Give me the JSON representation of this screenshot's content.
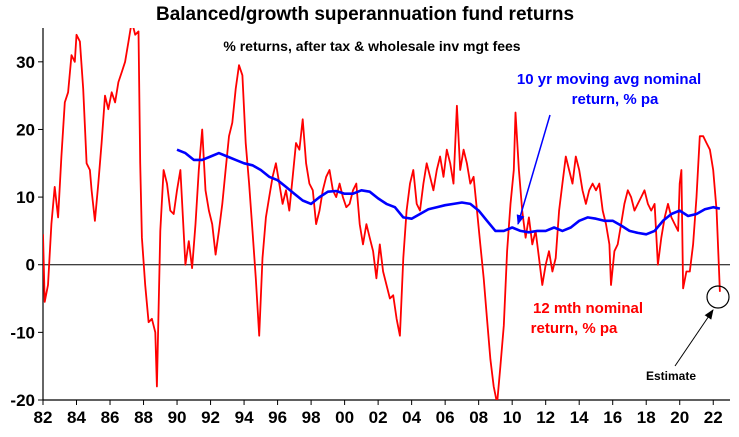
{
  "chart_data": {
    "type": "line",
    "title": "Balanced/growth superannuation fund returns",
    "subtitle": "% returns, after tax & wholesale inv mgt fees",
    "xlabel": "",
    "ylabel": "",
    "xlim": [
      1982,
      2023
    ],
    "ylim": [
      -20,
      35
    ],
    "y_ticks": [
      -20,
      -10,
      0,
      10,
      20,
      30
    ],
    "x_tick_labels": [
      "82",
      "84",
      "86",
      "88",
      "90",
      "92",
      "94",
      "96",
      "98",
      "00",
      "02",
      "04",
      "06",
      "08",
      "10",
      "12",
      "14",
      "16",
      "18",
      "20",
      "22"
    ],
    "grid": false,
    "colors": {
      "moving_avg": "#0000ff",
      "nominal": "#ff0000",
      "axis": "#000000"
    },
    "series": [
      {
        "name": "12 mth nominal return, % pa",
        "color": "#ff0000",
        "points": [
          [
            1982.0,
            4.5
          ],
          [
            1982.1,
            -5.5
          ],
          [
            1982.3,
            -3.0
          ],
          [
            1982.5,
            6.0
          ],
          [
            1982.7,
            11.5
          ],
          [
            1982.9,
            7.0
          ],
          [
            1983.1,
            16.0
          ],
          [
            1983.3,
            24.0
          ],
          [
            1983.5,
            25.5
          ],
          [
            1983.7,
            31.0
          ],
          [
            1983.9,
            30.0
          ],
          [
            1984.0,
            34.0
          ],
          [
            1984.2,
            33.0
          ],
          [
            1984.4,
            26.0
          ],
          [
            1984.6,
            15.0
          ],
          [
            1984.8,
            14.0
          ],
          [
            1984.9,
            11.0
          ],
          [
            1985.1,
            6.5
          ],
          [
            1985.3,
            12.0
          ],
          [
            1985.5,
            18.0
          ],
          [
            1985.7,
            25.0
          ],
          [
            1985.9,
            23.0
          ],
          [
            1986.1,
            25.5
          ],
          [
            1986.3,
            24.0
          ],
          [
            1986.5,
            27.0
          ],
          [
            1986.7,
            28.5
          ],
          [
            1986.9,
            30.0
          ],
          [
            1987.1,
            33.0
          ],
          [
            1987.3,
            36.0
          ],
          [
            1987.5,
            34.0
          ],
          [
            1987.7,
            34.5
          ],
          [
            1987.8,
            15.0
          ],
          [
            1987.9,
            4.0
          ],
          [
            1988.1,
            -3.0
          ],
          [
            1988.3,
            -8.5
          ],
          [
            1988.5,
            -8.0
          ],
          [
            1988.7,
            -10.0
          ],
          [
            1988.8,
            -18.0
          ],
          [
            1989.0,
            5.0
          ],
          [
            1989.2,
            14.0
          ],
          [
            1989.4,
            12.0
          ],
          [
            1989.6,
            8.0
          ],
          [
            1989.8,
            7.5
          ],
          [
            1990.0,
            11.0
          ],
          [
            1990.2,
            14.0
          ],
          [
            1990.4,
            4.5
          ],
          [
            1990.5,
            0.0
          ],
          [
            1990.7,
            3.5
          ],
          [
            1990.9,
            -0.5
          ],
          [
            1991.1,
            6.0
          ],
          [
            1991.3,
            14.0
          ],
          [
            1991.5,
            20.0
          ],
          [
            1991.7,
            11.0
          ],
          [
            1991.9,
            8.0
          ],
          [
            1992.1,
            6.0
          ],
          [
            1992.3,
            1.5
          ],
          [
            1992.5,
            5.0
          ],
          [
            1992.7,
            9.0
          ],
          [
            1992.9,
            14.0
          ],
          [
            1993.1,
            19.0
          ],
          [
            1993.3,
            21.0
          ],
          [
            1993.5,
            26.0
          ],
          [
            1993.7,
            29.5
          ],
          [
            1993.9,
            28.0
          ],
          [
            1994.1,
            18.0
          ],
          [
            1994.3,
            12.0
          ],
          [
            1994.5,
            5.0
          ],
          [
            1994.7,
            -2.0
          ],
          [
            1994.9,
            -10.5
          ],
          [
            1995.1,
            1.0
          ],
          [
            1995.3,
            7.0
          ],
          [
            1995.5,
            10.0
          ],
          [
            1995.7,
            13.0
          ],
          [
            1995.9,
            15.0
          ],
          [
            1996.1,
            12.0
          ],
          [
            1996.3,
            9.0
          ],
          [
            1996.5,
            11.0
          ],
          [
            1996.7,
            8.0
          ],
          [
            1996.9,
            13.0
          ],
          [
            1997.1,
            18.0
          ],
          [
            1997.3,
            17.0
          ],
          [
            1997.5,
            21.5
          ],
          [
            1997.7,
            15.0
          ],
          [
            1997.9,
            12.0
          ],
          [
            1998.1,
            11.0
          ],
          [
            1998.3,
            6.0
          ],
          [
            1998.5,
            8.0
          ],
          [
            1998.7,
            11.0
          ],
          [
            1998.9,
            13.0
          ],
          [
            1999.1,
            14.0
          ],
          [
            1999.3,
            11.0
          ],
          [
            1999.5,
            10.0
          ],
          [
            1999.7,
            12.0
          ],
          [
            1999.9,
            10.0
          ],
          [
            2000.1,
            8.5
          ],
          [
            2000.3,
            9.0
          ],
          [
            2000.5,
            11.0
          ],
          [
            2000.7,
            12.0
          ],
          [
            2000.9,
            6.0
          ],
          [
            2001.1,
            3.0
          ],
          [
            2001.3,
            6.0
          ],
          [
            2001.5,
            4.0
          ],
          [
            2001.7,
            2.0
          ],
          [
            2001.9,
            -2.0
          ],
          [
            2002.1,
            3.0
          ],
          [
            2002.3,
            -1.0
          ],
          [
            2002.5,
            -3.0
          ],
          [
            2002.7,
            -5.0
          ],
          [
            2002.9,
            -4.5
          ],
          [
            2003.1,
            -8.0
          ],
          [
            2003.3,
            -10.5
          ],
          [
            2003.5,
            1.0
          ],
          [
            2003.7,
            8.0
          ],
          [
            2003.9,
            12.0
          ],
          [
            2004.1,
            14.0
          ],
          [
            2004.3,
            9.0
          ],
          [
            2004.5,
            8.0
          ],
          [
            2004.7,
            12.0
          ],
          [
            2004.9,
            15.0
          ],
          [
            2005.1,
            13.0
          ],
          [
            2005.3,
            11.0
          ],
          [
            2005.5,
            14.0
          ],
          [
            2005.7,
            16.0
          ],
          [
            2005.9,
            13.0
          ],
          [
            2006.1,
            17.0
          ],
          [
            2006.3,
            15.0
          ],
          [
            2006.5,
            12.0
          ],
          [
            2006.7,
            23.5
          ],
          [
            2006.9,
            14.0
          ],
          [
            2007.1,
            17.0
          ],
          [
            2007.3,
            15.0
          ],
          [
            2007.5,
            12.0
          ],
          [
            2007.7,
            13.0
          ],
          [
            2007.9,
            8.0
          ],
          [
            2008.1,
            3.0
          ],
          [
            2008.3,
            -2.0
          ],
          [
            2008.5,
            -8.0
          ],
          [
            2008.7,
            -14.0
          ],
          [
            2008.9,
            -18.0
          ],
          [
            2009.1,
            -20.5
          ],
          [
            2009.3,
            -15.0
          ],
          [
            2009.5,
            -9.0
          ],
          [
            2009.7,
            2.0
          ],
          [
            2009.9,
            9.0
          ],
          [
            2010.1,
            14.0
          ],
          [
            2010.2,
            22.5
          ],
          [
            2010.4,
            14.0
          ],
          [
            2010.6,
            8.0
          ],
          [
            2010.8,
            4.0
          ],
          [
            2011.0,
            7.0
          ],
          [
            2011.2,
            3.0
          ],
          [
            2011.4,
            5.0
          ],
          [
            2011.6,
            1.0
          ],
          [
            2011.8,
            -3.0
          ],
          [
            2012.0,
            0.0
          ],
          [
            2012.2,
            2.0
          ],
          [
            2012.4,
            -1.0
          ],
          [
            2012.6,
            1.0
          ],
          [
            2012.8,
            8.0
          ],
          [
            2013.0,
            12.0
          ],
          [
            2013.2,
            16.0
          ],
          [
            2013.4,
            14.0
          ],
          [
            2013.6,
            12.0
          ],
          [
            2013.8,
            16.0
          ],
          [
            2014.0,
            14.0
          ],
          [
            2014.2,
            11.0
          ],
          [
            2014.4,
            9.0
          ],
          [
            2014.6,
            11.0
          ],
          [
            2014.8,
            12.0
          ],
          [
            2015.0,
            11.0
          ],
          [
            2015.2,
            12.0
          ],
          [
            2015.4,
            8.0
          ],
          [
            2015.6,
            6.0
          ],
          [
            2015.8,
            3.0
          ],
          [
            2015.9,
            -3.0
          ],
          [
            2016.1,
            2.0
          ],
          [
            2016.3,
            3.0
          ],
          [
            2016.5,
            6.0
          ],
          [
            2016.7,
            9.0
          ],
          [
            2016.9,
            11.0
          ],
          [
            2017.1,
            10.0
          ],
          [
            2017.3,
            8.0
          ],
          [
            2017.5,
            9.0
          ],
          [
            2017.7,
            10.0
          ],
          [
            2017.9,
            11.0
          ],
          [
            2018.1,
            9.0
          ],
          [
            2018.3,
            8.0
          ],
          [
            2018.5,
            9.0
          ],
          [
            2018.7,
            0.0
          ],
          [
            2018.9,
            4.0
          ],
          [
            2019.1,
            7.0
          ],
          [
            2019.3,
            9.0
          ],
          [
            2019.5,
            7.0
          ],
          [
            2019.7,
            6.0
          ],
          [
            2019.9,
            5.0
          ],
          [
            2020.0,
            12.0
          ],
          [
            2020.1,
            14.0
          ],
          [
            2020.2,
            -3.5
          ],
          [
            2020.4,
            -1.0
          ],
          [
            2020.6,
            -1.0
          ],
          [
            2020.8,
            3.0
          ],
          [
            2021.0,
            10.0
          ],
          [
            2021.2,
            19.0
          ],
          [
            2021.4,
            19.0
          ],
          [
            2021.6,
            18.0
          ],
          [
            2021.8,
            17.0
          ],
          [
            2022.0,
            14.0
          ],
          [
            2022.2,
            8.0
          ],
          [
            2022.4,
            -4.0
          ]
        ]
      },
      {
        "name": "10 yr moving avg nominal return, % pa",
        "color": "#0000ff",
        "points": [
          [
            1990.0,
            17.0
          ],
          [
            1990.5,
            16.5
          ],
          [
            1991.0,
            15.5
          ],
          [
            1991.5,
            15.5
          ],
          [
            1992.0,
            16.0
          ],
          [
            1992.5,
            16.5
          ],
          [
            1993.0,
            16.0
          ],
          [
            1993.5,
            15.5
          ],
          [
            1994.0,
            15.0
          ],
          [
            1994.5,
            14.7
          ],
          [
            1995.0,
            14.0
          ],
          [
            1995.5,
            13.0
          ],
          [
            1996.0,
            12.5
          ],
          [
            1996.5,
            11.5
          ],
          [
            1997.0,
            10.5
          ],
          [
            1997.5,
            9.5
          ],
          [
            1998.0,
            9.0
          ],
          [
            1998.5,
            10.0
          ],
          [
            1999.0,
            10.8
          ],
          [
            1999.5,
            10.9
          ],
          [
            2000.0,
            10.5
          ],
          [
            2000.5,
            10.5
          ],
          [
            2001.0,
            11.0
          ],
          [
            2001.5,
            10.8
          ],
          [
            2002.0,
            9.8
          ],
          [
            2002.5,
            9.0
          ],
          [
            2003.0,
            8.5
          ],
          [
            2003.5,
            7.0
          ],
          [
            2004.0,
            6.8
          ],
          [
            2004.5,
            7.5
          ],
          [
            2005.0,
            8.2
          ],
          [
            2005.5,
            8.5
          ],
          [
            2006.0,
            8.8
          ],
          [
            2006.5,
            9.0
          ],
          [
            2007.0,
            9.2
          ],
          [
            2007.5,
            9.0
          ],
          [
            2008.0,
            8.0
          ],
          [
            2008.5,
            6.5
          ],
          [
            2009.0,
            5.0
          ],
          [
            2009.5,
            5.0
          ],
          [
            2010.0,
            5.5
          ],
          [
            2010.5,
            5.0
          ],
          [
            2011.0,
            4.8
          ],
          [
            2011.5,
            5.0
          ],
          [
            2012.0,
            5.0
          ],
          [
            2012.5,
            5.5
          ],
          [
            2013.0,
            5.0
          ],
          [
            2013.5,
            5.5
          ],
          [
            2014.0,
            6.5
          ],
          [
            2014.5,
            7.0
          ],
          [
            2015.0,
            6.8
          ],
          [
            2015.5,
            6.5
          ],
          [
            2016.0,
            6.5
          ],
          [
            2016.5,
            5.8
          ],
          [
            2017.0,
            5.0
          ],
          [
            2017.5,
            4.7
          ],
          [
            2018.0,
            4.5
          ],
          [
            2018.5,
            5.0
          ],
          [
            2019.0,
            6.5
          ],
          [
            2019.5,
            7.5
          ],
          [
            2020.0,
            8.0
          ],
          [
            2020.5,
            7.2
          ],
          [
            2021.0,
            7.5
          ],
          [
            2021.5,
            8.2
          ],
          [
            2022.0,
            8.5
          ],
          [
            2022.4,
            8.3
          ]
        ]
      }
    ],
    "annotations": {
      "moving_avg_label_line1": "10 yr moving avg nominal",
      "moving_avg_label_line2": "return, % pa",
      "nominal_label_line1": "12 mth nominal",
      "nominal_label_line2": "return, % pa",
      "estimate_label": "Estimate"
    }
  }
}
